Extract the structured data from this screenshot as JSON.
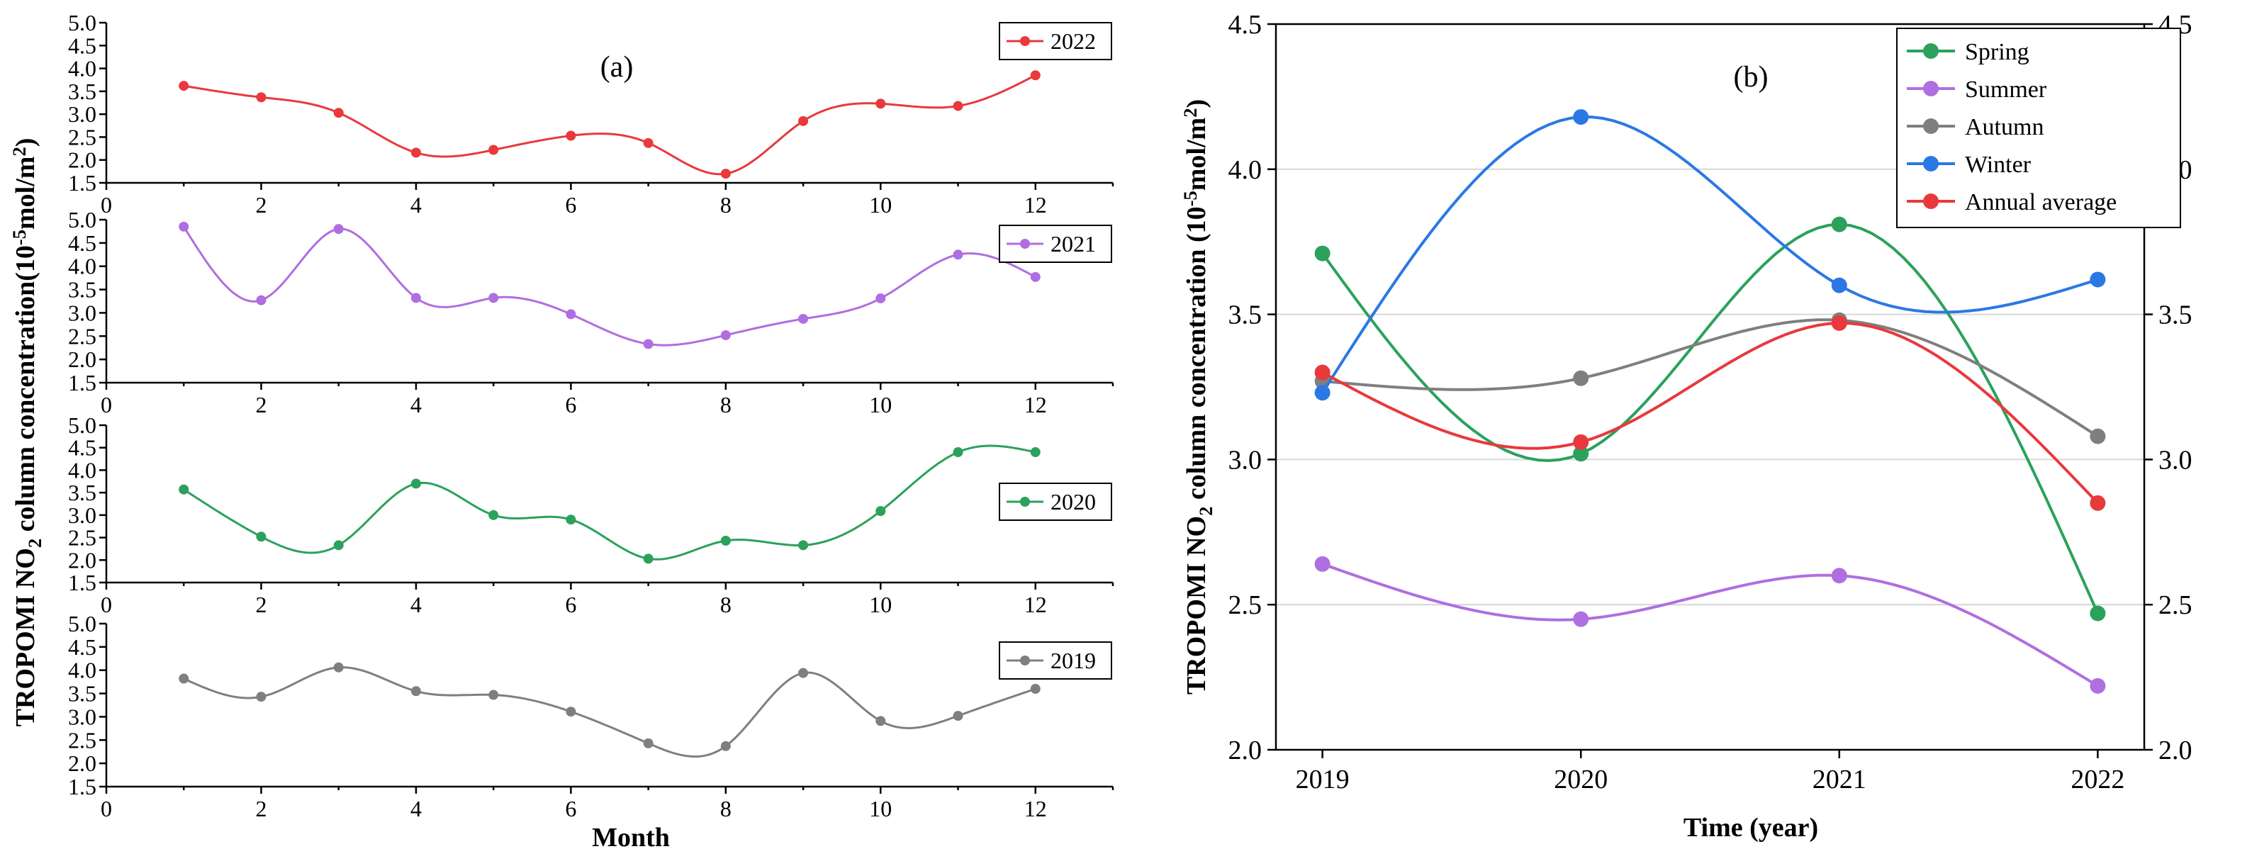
{
  "chart_data": [
    {
      "type": "line",
      "panel_label": "(a)",
      "xlabel": "Month",
      "ylabel_prefix": "TROPOMI NO",
      "ylabel_sub": "2",
      "ylabel_mid": " column concentration(10",
      "ylabel_sup": "-5",
      "ylabel_suffix": "mol/m",
      "ylabel_sup2": "2",
      "ylabel_end": ")",
      "xlim": [
        0,
        13
      ],
      "x_ticks": [
        0,
        2,
        4,
        6,
        8,
        10,
        12
      ],
      "x_tick_labels": [
        "0",
        "2",
        "4",
        "6",
        "8",
        "10",
        "12"
      ],
      "ylim": [
        1.5,
        5.0
      ],
      "y_ticks": [
        1.5,
        2.0,
        2.5,
        3.0,
        3.5,
        4.0,
        4.5,
        5.0
      ],
      "y_tick_labels": [
        "1.5",
        "2.0",
        "2.5",
        "3.0",
        "3.5",
        "4.0",
        "4.5",
        "5.0"
      ],
      "x": [
        1,
        2,
        3,
        4,
        5,
        6,
        7,
        8,
        9,
        10,
        11,
        12
      ],
      "series": [
        {
          "name": "2022",
          "color": "#e8393c",
          "legend_position": "top-right",
          "values": [
            3.62,
            3.37,
            3.03,
            2.16,
            2.22,
            2.53,
            2.37,
            1.7,
            2.85,
            3.23,
            3.18,
            3.85
          ]
        },
        {
          "name": "2021",
          "color": "#b06ee0",
          "legend_position": "top-right",
          "values": [
            4.85,
            3.27,
            4.8,
            3.32,
            3.32,
            2.97,
            2.33,
            2.52,
            2.87,
            3.31,
            4.25,
            3.77
          ]
        },
        {
          "name": "2020",
          "color": "#2ba15b",
          "legend_position": "right",
          "values": [
            3.57,
            2.52,
            2.33,
            3.7,
            3.0,
            2.9,
            2.03,
            2.43,
            2.33,
            3.09,
            4.4,
            4.4
          ]
        },
        {
          "name": "2019",
          "color": "#7f7f7f",
          "legend_position": "right",
          "values": [
            3.82,
            3.43,
            4.06,
            3.55,
            3.47,
            3.11,
            2.43,
            2.37,
            3.94,
            2.91,
            3.02,
            3.6
          ]
        }
      ]
    },
    {
      "type": "line",
      "panel_label": "(b)",
      "xlabel": "Time (year)",
      "ylabel_prefix": "TROPOMI NO",
      "ylabel_sub": "2",
      "ylabel_mid": " column concentration (10",
      "ylabel_sup": "-5",
      "ylabel_suffix": "mol/m",
      "ylabel_sup2": "2",
      "ylabel_end": ")",
      "categories": [
        "2019",
        "2020",
        "2021",
        "2022"
      ],
      "xlim": [
        2018.82,
        2022.18
      ],
      "ylim": [
        2.0,
        4.5
      ],
      "y_ticks": [
        2.0,
        2.5,
        3.0,
        3.5,
        4.0,
        4.5
      ],
      "y_tick_labels": [
        "2.0",
        "2.5",
        "3.0",
        "3.5",
        "4.0",
        "4.5"
      ],
      "grid": true,
      "legend_position": "top-right",
      "series": [
        {
          "name": "Spring",
          "color": "#2ba15b",
          "values": [
            3.71,
            3.02,
            3.81,
            2.47
          ]
        },
        {
          "name": "Summer",
          "color": "#b06ee0",
          "values": [
            2.64,
            2.45,
            2.6,
            2.22
          ]
        },
        {
          "name": "Autumn",
          "color": "#7f7f7f",
          "values": [
            3.27,
            3.28,
            3.48,
            3.08
          ]
        },
        {
          "name": "Winter",
          "color": "#2b78e4",
          "values": [
            3.23,
            4.18,
            3.6,
            3.62
          ]
        },
        {
          "name": "Annual average",
          "color": "#e8393c",
          "values": [
            3.3,
            3.06,
            3.47,
            2.85
          ]
        }
      ]
    }
  ]
}
